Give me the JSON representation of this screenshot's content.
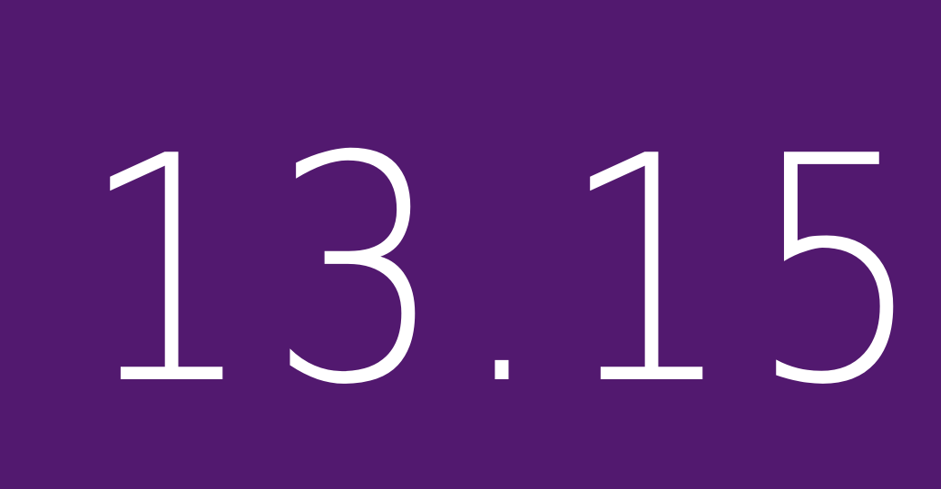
{
  "display": {
    "value": "13.15"
  },
  "colors": {
    "background": "#52196f",
    "text": "#ffffff"
  }
}
